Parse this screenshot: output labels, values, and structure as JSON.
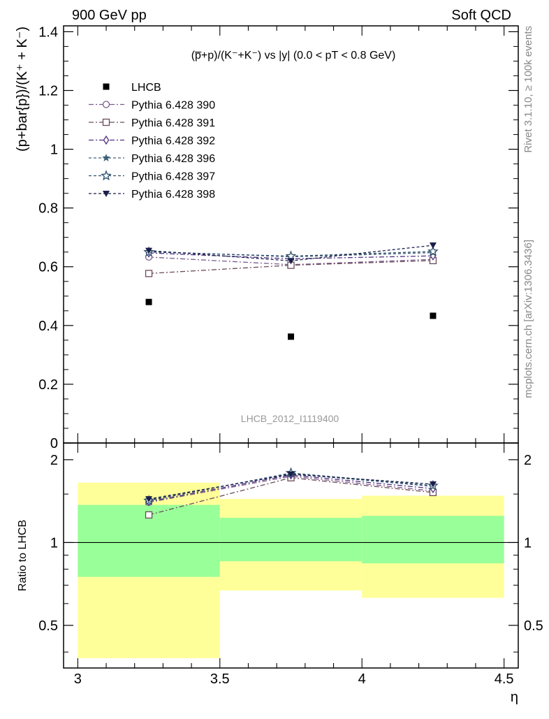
{
  "header": {
    "left": "900 GeV pp",
    "right": "Soft QCD"
  },
  "side_labels": {
    "top": "Rivet 3.1.10, ≥ 100k events",
    "bottom": "mcplots.cern.ch [arXiv:1306.3436]"
  },
  "watermark": "LHCB_2012_I1119400",
  "chart_data": [
    {
      "type": "scatter",
      "title": "(p̅+p)/(K⁻+K⁻) vs |y| (0.0 < pT < 0.8 GeV)",
      "ylabel": "(p+bar{p})/(K⁺ + K⁻)",
      "xlim": [
        2.95,
        4.55
      ],
      "ylim": [
        0,
        1.42
      ],
      "yticks": [
        0,
        0.2,
        0.4,
        0.6,
        0.8,
        1,
        1.2,
        1.4
      ],
      "ytick_labels": [
        "0",
        "0.2",
        "0.4",
        "0.6",
        "0.8",
        "1",
        "1.2",
        "1.4"
      ],
      "x": [
        3.25,
        3.75,
        4.25
      ],
      "legend_position": "top-left",
      "series": [
        {
          "name": "LHCB",
          "marker": "filled-square",
          "color": "#000000",
          "values": [
            0.48,
            0.362,
            0.433
          ]
        },
        {
          "name": "Pythia 6.428 390",
          "marker": "open-circle",
          "color": "#7a5a8a",
          "values": [
            0.633,
            0.607,
            0.625
          ]
        },
        {
          "name": "Pythia 6.428 391",
          "marker": "open-square",
          "color": "#6b4a5a",
          "values": [
            0.577,
            0.605,
            0.621
          ]
        },
        {
          "name": "Pythia 6.428 392",
          "marker": "open-diamond",
          "color": "#503080",
          "values": [
            0.647,
            0.627,
            0.637
          ]
        },
        {
          "name": "Pythia 6.428 396",
          "marker": "filled-star",
          "color": "#3d6078",
          "values": [
            0.652,
            0.634,
            0.648
          ]
        },
        {
          "name": "Pythia 6.428 397",
          "marker": "open-star",
          "color": "#2f4f6e",
          "values": [
            0.65,
            0.636,
            0.652
          ]
        },
        {
          "name": "Pythia 6.428 398",
          "marker": "filled-triangle-down",
          "color": "#1a1f4a",
          "values": [
            0.655,
            0.62,
            0.673
          ]
        }
      ]
    },
    {
      "type": "scatter",
      "ylabel": "Ratio to LHCB",
      "xlabel": "η",
      "xlim": [
        2.95,
        4.55
      ],
      "ylim": [
        0.35,
        2.3
      ],
      "log_y": true,
      "xticks": [
        3,
        3.5,
        4,
        4.5
      ],
      "xtick_labels": [
        "3",
        "3.5",
        "4",
        "4.5"
      ],
      "yticks": [
        0.5,
        1,
        2
      ],
      "ytick_labels": [
        "0.5",
        "1",
        "2"
      ],
      "bands": [
        {
          "x": [
            3.0,
            3.5
          ],
          "yellow": [
            0.38,
            1.65
          ],
          "green": [
            0.75,
            1.37
          ]
        },
        {
          "x": [
            3.5,
            4.0
          ],
          "yellow": [
            0.67,
            1.44
          ],
          "green": [
            0.855,
            1.23
          ]
        },
        {
          "x": [
            4.0,
            4.5
          ],
          "yellow": [
            0.63,
            1.48
          ],
          "green": [
            0.84,
            1.25
          ]
        }
      ],
      "x": [
        3.25,
        3.75,
        4.25
      ],
      "series": [
        {
          "name": "Pythia 6.428 390",
          "values": [
            1.4,
            1.74,
            1.54
          ]
        },
        {
          "name": "Pythia 6.428 391",
          "values": [
            1.26,
            1.72,
            1.52
          ]
        },
        {
          "name": "Pythia 6.428 392",
          "values": [
            1.41,
            1.76,
            1.57
          ]
        },
        {
          "name": "Pythia 6.428 396",
          "values": [
            1.43,
            1.78,
            1.6
          ]
        },
        {
          "name": "Pythia 6.428 397",
          "values": [
            1.42,
            1.79,
            1.61
          ]
        },
        {
          "name": "Pythia 6.428 398",
          "values": [
            1.44,
            1.77,
            1.63
          ]
        }
      ]
    }
  ]
}
